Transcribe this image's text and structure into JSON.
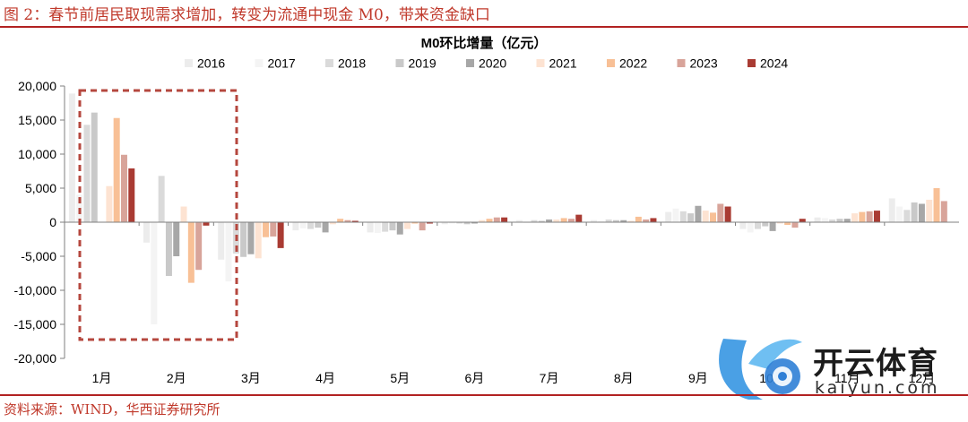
{
  "header": {
    "figure_title": "图 2：春节前居民取现需求增加，转变为流通中现金 M0，带来资金缺口"
  },
  "footer": {
    "source": "资料来源：WIND，华西证券研究所"
  },
  "watermark": {
    "brand": "开云体育",
    "url": "kaiyun.com"
  },
  "colors": {
    "2016": "#ececec",
    "2017": "#f4f4f4",
    "2018": "#dadada",
    "2019": "#c9c9c9",
    "2020": "#a7a7a7",
    "2021": "#fde3d2",
    "2022": "#f8c096",
    "2023": "#d8a49a",
    "2024": "#a93b33",
    "highlight": "#b5473e",
    "title_red": "#c0392b"
  },
  "chart_data": {
    "type": "bar",
    "title": "M0环比增量（亿元）",
    "xlabel": "",
    "ylabel": "",
    "ylim": [
      -20000,
      20000
    ],
    "yticks": [
      20000,
      15000,
      10000,
      5000,
      0,
      -5000,
      -10000,
      -15000,
      -20000
    ],
    "ytick_labels": [
      "20,000",
      "15,000",
      "10,000",
      "5,000",
      "0",
      "-5,000",
      "-10,000",
      "-15,000",
      "-20,000"
    ],
    "legend_position": "top",
    "grid": false,
    "categories": [
      "1月",
      "2月",
      "3月",
      "4月",
      "5月",
      "6月",
      "7月",
      "8月",
      "9月",
      "10月",
      "11月",
      "12月"
    ],
    "series": [
      {
        "name": "2016",
        "values": [
          18900,
          -3000,
          -5500,
          -1200,
          -1500,
          -300,
          300,
          300,
          1500,
          -1000,
          700,
          3500
        ]
      },
      {
        "name": "2017",
        "values": [
          4000,
          -15000,
          -8700,
          -900,
          -1600,
          -200,
          -100,
          200,
          2000,
          -1500,
          600,
          2300
        ]
      },
      {
        "name": "2018",
        "values": [
          14300,
          6800,
          -4600,
          -1000,
          -1400,
          -200,
          300,
          400,
          1600,
          -1000,
          400,
          1800
        ]
      },
      {
        "name": "2019",
        "values": [
          16100,
          -7900,
          -5100,
          -800,
          -1200,
          -300,
          200,
          300,
          1300,
          -600,
          500,
          2900
        ]
      },
      {
        "name": "2020",
        "values": [
          0,
          -5000,
          -4700,
          -1500,
          -1800,
          -200,
          400,
          300,
          2400,
          -1300,
          500,
          2700
        ]
      },
      {
        "name": "2021",
        "values": [
          5300,
          2300,
          -5300,
          -300,
          -1000,
          300,
          400,
          200,
          1700,
          -200,
          1300,
          3300
        ]
      },
      {
        "name": "2022",
        "values": [
          15300,
          -8900,
          -2200,
          500,
          -200,
          500,
          600,
          800,
          1400,
          -400,
          1500,
          5000
        ]
      },
      {
        "name": "2023",
        "values": [
          9900,
          -7000,
          -2100,
          300,
          -1200,
          700,
          500,
          400,
          2700,
          -800,
          1600,
          3100
        ]
      },
      {
        "name": "2024",
        "values": [
          7900,
          -500,
          -3800,
          200,
          -200,
          700,
          1100,
          600,
          2300,
          500,
          1700,
          0
        ]
      }
    ]
  }
}
